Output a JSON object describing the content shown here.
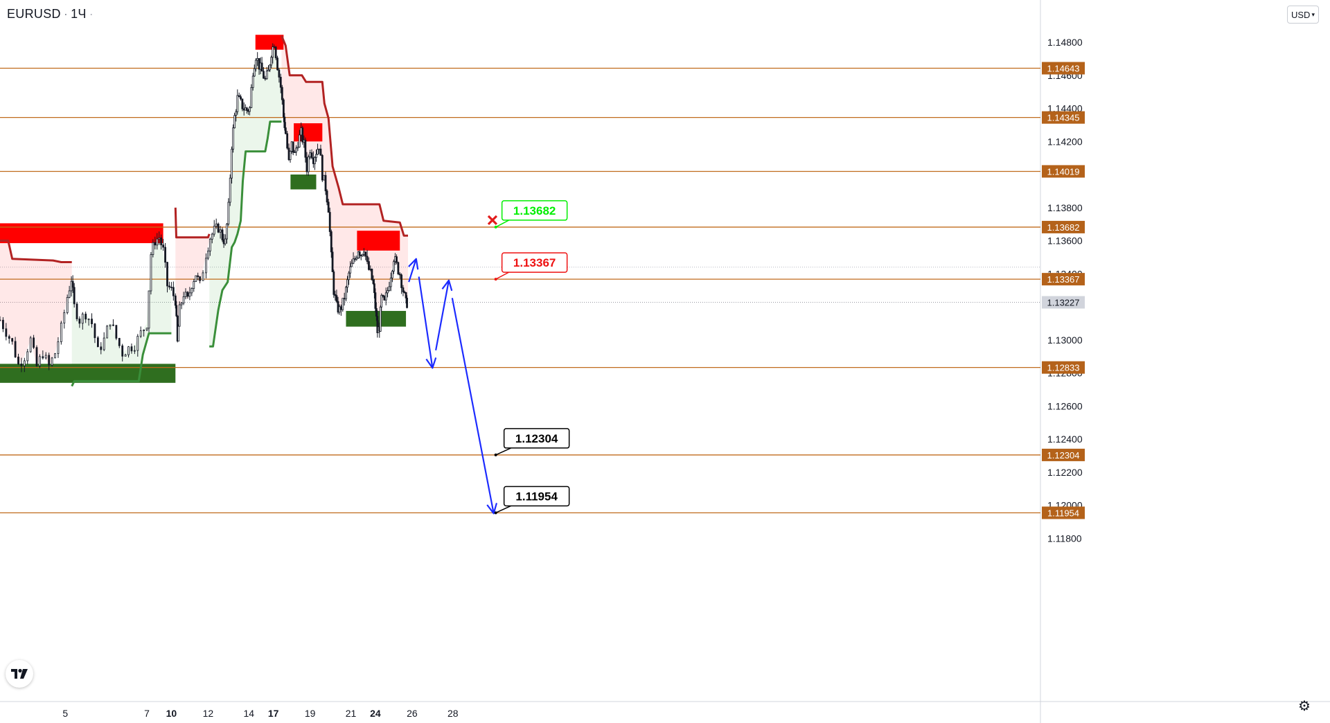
{
  "header": {
    "symbol": "EURUSD",
    "interval": "1Ч",
    "currency_selector": "USD"
  },
  "icons": {
    "logo": "tradingview-logo-icon",
    "settings": "gear-icon",
    "currency_chevron": "chevron-down-icon",
    "invalid_marker": "red-x-icon"
  },
  "colors": {
    "level_line": "#c06a1b",
    "level_tag": "#b4621a",
    "resistance_zone": "#ff0000",
    "support_zone": "#2f6e1f",
    "trend_red": "#b22222",
    "trend_green": "#3a8f3a",
    "candle": "#131722",
    "forecast": "#1c2bff",
    "callout_green": "#00ee00",
    "callout_red": "#ee1111",
    "callout_black": "#000000"
  },
  "chart_data": {
    "type": "candlestick",
    "title": "",
    "xlabel": "",
    "ylabel": "",
    "ylim": [
      1.1172,
      1.1504
    ],
    "x_unit": "day",
    "xlim": [
      3.4,
      28.9
    ],
    "x_ticks": [
      {
        "label": "5",
        "x": 5,
        "bold": false
      },
      {
        "label": "7",
        "x": 7,
        "bold": false
      },
      {
        "label": "10",
        "x": 7.6,
        "bold": true
      },
      {
        "label": "12",
        "x": 8.5,
        "bold": false
      },
      {
        "label": "14",
        "x": 9.5,
        "bold": false
      },
      {
        "label": "17",
        "x": 10.1,
        "bold": true
      },
      {
        "label": "19",
        "x": 11.0,
        "bold": false
      },
      {
        "label": "21",
        "x": 12.0,
        "bold": false
      },
      {
        "label": "24",
        "x": 12.6,
        "bold": true
      },
      {
        "label": "26",
        "x": 13.5,
        "bold": false
      },
      {
        "label": "28",
        "x": 14.5,
        "bold": false
      }
    ],
    "y_ticks": [
      "1.14800",
      "1.14600",
      "1.14400",
      "1.14200",
      "1.13800",
      "1.13600",
      "1.13400",
      "1.13000",
      "1.12800",
      "1.12600",
      "1.12400",
      "1.12200",
      "1.12000",
      "1.11800"
    ],
    "horizontal_levels": [
      "1.14643",
      "1.14345",
      "1.14019",
      "1.13682",
      "1.13367",
      "1.12833",
      "1.12304",
      "1.11954"
    ],
    "current_price": "1.13227",
    "close_path": [
      {
        "x": 3.4,
        "y": 1.1312
      },
      {
        "x": 3.55,
        "y": 1.1305
      },
      {
        "x": 3.7,
        "y": 1.1298
      },
      {
        "x": 3.85,
        "y": 1.1285
      },
      {
        "x": 4.0,
        "y": 1.129
      },
      {
        "x": 4.15,
        "y": 1.13
      },
      {
        "x": 4.3,
        "y": 1.1284
      },
      {
        "x": 4.45,
        "y": 1.1292
      },
      {
        "x": 4.6,
        "y": 1.1284
      },
      {
        "x": 4.75,
        "y": 1.1292
      },
      {
        "x": 4.9,
        "y": 1.1307
      },
      {
        "x": 5.05,
        "y": 1.1326
      },
      {
        "x": 5.15,
        "y": 1.1337
      },
      {
        "x": 5.22,
        "y": 1.132
      },
      {
        "x": 5.35,
        "y": 1.1312
      },
      {
        "x": 5.5,
        "y": 1.1316
      },
      {
        "x": 5.65,
        "y": 1.131
      },
      {
        "x": 5.8,
        "y": 1.1293
      },
      {
        "x": 5.95,
        "y": 1.13
      },
      {
        "x": 6.1,
        "y": 1.1312
      },
      {
        "x": 6.25,
        "y": 1.1301
      },
      {
        "x": 6.4,
        "y": 1.1292
      },
      {
        "x": 6.55,
        "y": 1.1295
      },
      {
        "x": 6.7,
        "y": 1.1297
      },
      {
        "x": 6.85,
        "y": 1.1304
      },
      {
        "x": 7.0,
        "y": 1.131
      },
      {
        "x": 7.1,
        "y": 1.1352
      },
      {
        "x": 7.2,
        "y": 1.136
      },
      {
        "x": 7.3,
        "y": 1.1362
      },
      {
        "x": 7.4,
        "y": 1.1354
      },
      {
        "x": 7.5,
        "y": 1.1333
      },
      {
        "x": 7.6,
        "y": 1.133
      },
      {
        "x": 7.7,
        "y": 1.1324
      },
      {
        "x": 7.75,
        "y": 1.1298
      },
      {
        "x": 7.8,
        "y": 1.1318
      },
      {
        "x": 7.9,
        "y": 1.1328
      },
      {
        "x": 8.0,
        "y": 1.1324
      },
      {
        "x": 8.1,
        "y": 1.1334
      },
      {
        "x": 8.2,
        "y": 1.134
      },
      {
        "x": 8.3,
        "y": 1.1333
      },
      {
        "x": 8.45,
        "y": 1.1352
      },
      {
        "x": 8.55,
        "y": 1.1362
      },
      {
        "x": 8.65,
        "y": 1.1366
      },
      {
        "x": 8.75,
        "y": 1.1368
      },
      {
        "x": 8.85,
        "y": 1.1362
      },
      {
        "x": 8.92,
        "y": 1.1359
      },
      {
        "x": 9.0,
        "y": 1.138
      },
      {
        "x": 9.08,
        "y": 1.1418
      },
      {
        "x": 9.15,
        "y": 1.1435
      },
      {
        "x": 9.22,
        "y": 1.1446
      },
      {
        "x": 9.3,
        "y": 1.1443
      },
      {
        "x": 9.38,
        "y": 1.144
      },
      {
        "x": 9.45,
        "y": 1.1439
      },
      {
        "x": 9.52,
        "y": 1.144
      },
      {
        "x": 9.6,
        "y": 1.1463
      },
      {
        "x": 9.67,
        "y": 1.1472
      },
      {
        "x": 9.75,
        "y": 1.1466
      },
      {
        "x": 9.82,
        "y": 1.1462
      },
      {
        "x": 9.9,
        "y": 1.1457
      },
      {
        "x": 9.98,
        "y": 1.1462
      },
      {
        "x": 10.05,
        "y": 1.1474
      },
      {
        "x": 10.12,
        "y": 1.148
      },
      {
        "x": 10.2,
        "y": 1.1466
      },
      {
        "x": 10.28,
        "y": 1.1453
      },
      {
        "x": 10.35,
        "y": 1.1435
      },
      {
        "x": 10.4,
        "y": 1.1425
      },
      {
        "x": 10.48,
        "y": 1.1407
      },
      {
        "x": 10.55,
        "y": 1.1418
      },
      {
        "x": 10.62,
        "y": 1.1412
      },
      {
        "x": 10.7,
        "y": 1.142
      },
      {
        "x": 10.78,
        "y": 1.1425
      },
      {
        "x": 10.85,
        "y": 1.1418
      },
      {
        "x": 10.92,
        "y": 1.1404
      },
      {
        "x": 11.0,
        "y": 1.1416
      },
      {
        "x": 11.08,
        "y": 1.141
      },
      {
        "x": 11.15,
        "y": 1.1414
      },
      {
        "x": 11.22,
        "y": 1.1418
      },
      {
        "x": 11.3,
        "y": 1.14
      },
      {
        "x": 11.38,
        "y": 1.1392
      },
      {
        "x": 11.45,
        "y": 1.138
      },
      {
        "x": 11.52,
        "y": 1.135
      },
      {
        "x": 11.58,
        "y": 1.133
      },
      {
        "x": 11.65,
        "y": 1.132
      },
      {
        "x": 11.72,
        "y": 1.1318
      },
      {
        "x": 11.8,
        "y": 1.1322
      },
      {
        "x": 11.88,
        "y": 1.133
      },
      {
        "x": 11.95,
        "y": 1.134
      },
      {
        "x": 12.02,
        "y": 1.1345
      },
      {
        "x": 12.1,
        "y": 1.1349
      },
      {
        "x": 12.18,
        "y": 1.1355
      },
      {
        "x": 12.25,
        "y": 1.1352
      },
      {
        "x": 12.32,
        "y": 1.1356
      },
      {
        "x": 12.4,
        "y": 1.1345
      },
      {
        "x": 12.48,
        "y": 1.134
      },
      {
        "x": 12.55,
        "y": 1.1333
      },
      {
        "x": 12.6,
        "y": 1.132
      },
      {
        "x": 12.65,
        "y": 1.1305
      },
      {
        "x": 12.7,
        "y": 1.1308
      },
      {
        "x": 12.75,
        "y": 1.1325
      },
      {
        "x": 12.82,
        "y": 1.1322
      },
      {
        "x": 12.9,
        "y": 1.133
      },
      {
        "x": 12.98,
        "y": 1.134
      },
      {
        "x": 13.05,
        "y": 1.135
      },
      {
        "x": 13.12,
        "y": 1.1345
      },
      {
        "x": 13.2,
        "y": 1.134
      },
      {
        "x": 13.28,
        "y": 1.133
      },
      {
        "x": 13.35,
        "y": 1.1322
      },
      {
        "x": 13.4,
        "y": 1.1323
      }
    ],
    "trailing_stop_red": [
      [
        [
          3.4,
          1.136
        ],
        [
          3.6,
          1.136
        ],
        [
          3.7,
          1.1349
        ],
        [
          4.7,
          1.1348
        ],
        [
          4.9,
          1.1347
        ],
        [
          5.1,
          1.1347
        ],
        [
          5.16,
          1.1347
        ]
      ],
      [
        [
          7.7,
          1.138
        ],
        [
          7.72,
          1.1362
        ],
        [
          8.5,
          1.1362
        ],
        [
          8.53,
          1.1364
        ]
      ],
      [
        [
          10.3,
          1.1484
        ],
        [
          10.4,
          1.1478
        ],
        [
          10.5,
          1.146
        ],
        [
          10.8,
          1.146
        ],
        [
          10.9,
          1.1456
        ],
        [
          11.3,
          1.1456
        ],
        [
          11.35,
          1.1443
        ],
        [
          11.45,
          1.1434
        ],
        [
          11.55,
          1.1405
        ],
        [
          11.7,
          1.1392
        ],
        [
          11.8,
          1.1382
        ],
        [
          12.7,
          1.1382
        ],
        [
          12.8,
          1.1372
        ],
        [
          13.2,
          1.1371
        ],
        [
          13.3,
          1.1363
        ],
        [
          13.4,
          1.1363
        ]
      ]
    ],
    "trailing_stop_green": [
      [
        [
          5.16,
          1.1272
        ],
        [
          5.22,
          1.1275
        ],
        [
          6.8,
          1.1275
        ],
        [
          6.9,
          1.1291
        ],
        [
          7.05,
          1.1304
        ],
        [
          7.6,
          1.1304
        ]
      ],
      [
        [
          8.53,
          1.1296
        ],
        [
          8.62,
          1.1296
        ],
        [
          8.75,
          1.1318
        ],
        [
          8.85,
          1.133
        ],
        [
          8.98,
          1.1335
        ],
        [
          9.08,
          1.1356
        ],
        [
          9.15,
          1.1359
        ],
        [
          9.22,
          1.1364
        ],
        [
          9.3,
          1.1372
        ],
        [
          9.35,
          1.1396
        ],
        [
          9.42,
          1.1414
        ],
        [
          9.9,
          1.1414
        ],
        [
          9.96,
          1.1422
        ],
        [
          10.02,
          1.1432
        ],
        [
          10.3,
          1.1432
        ]
      ]
    ],
    "zones": [
      {
        "kind": "resistance",
        "x0": 3.4,
        "x1": 7.4,
        "y0": 1.13585,
        "y1": 1.13705
      },
      {
        "kind": "support",
        "x0": 3.4,
        "x1": 7.7,
        "y0": 1.1274,
        "y1": 1.12855
      },
      {
        "kind": "resistance",
        "x0": 9.66,
        "x1": 10.35,
        "y0": 1.14755,
        "y1": 1.14845
      },
      {
        "kind": "resistance",
        "x0": 10.6,
        "x1": 11.3,
        "y0": 1.142,
        "y1": 1.1431
      },
      {
        "kind": "support",
        "x0": 10.52,
        "x1": 11.15,
        "y0": 1.1391,
        "y1": 1.14
      },
      {
        "kind": "resistance",
        "x0": 12.15,
        "x1": 13.2,
        "y0": 1.1354,
        "y1": 1.1366
      },
      {
        "kind": "support",
        "x0": 11.88,
        "x1": 13.35,
        "y0": 1.1308,
        "y1": 1.13175
      }
    ],
    "forecast_path": [
      [
        13.42,
        1.1335
      ],
      [
        13.6,
        1.1349
      ],
      [
        14.0,
        1.1283
      ],
      [
        14.4,
        1.1336
      ],
      [
        15.5,
        1.1195
      ]
    ],
    "callouts": [
      {
        "text": "1.13682",
        "value": 1.13682,
        "style": "green"
      },
      {
        "text": "1.13367",
        "value": 1.13367,
        "style": "red"
      },
      {
        "text": "1.12304",
        "value": 1.12304,
        "style": "black"
      },
      {
        "text": "1.11954",
        "value": 1.11954,
        "style": "black"
      }
    ]
  }
}
